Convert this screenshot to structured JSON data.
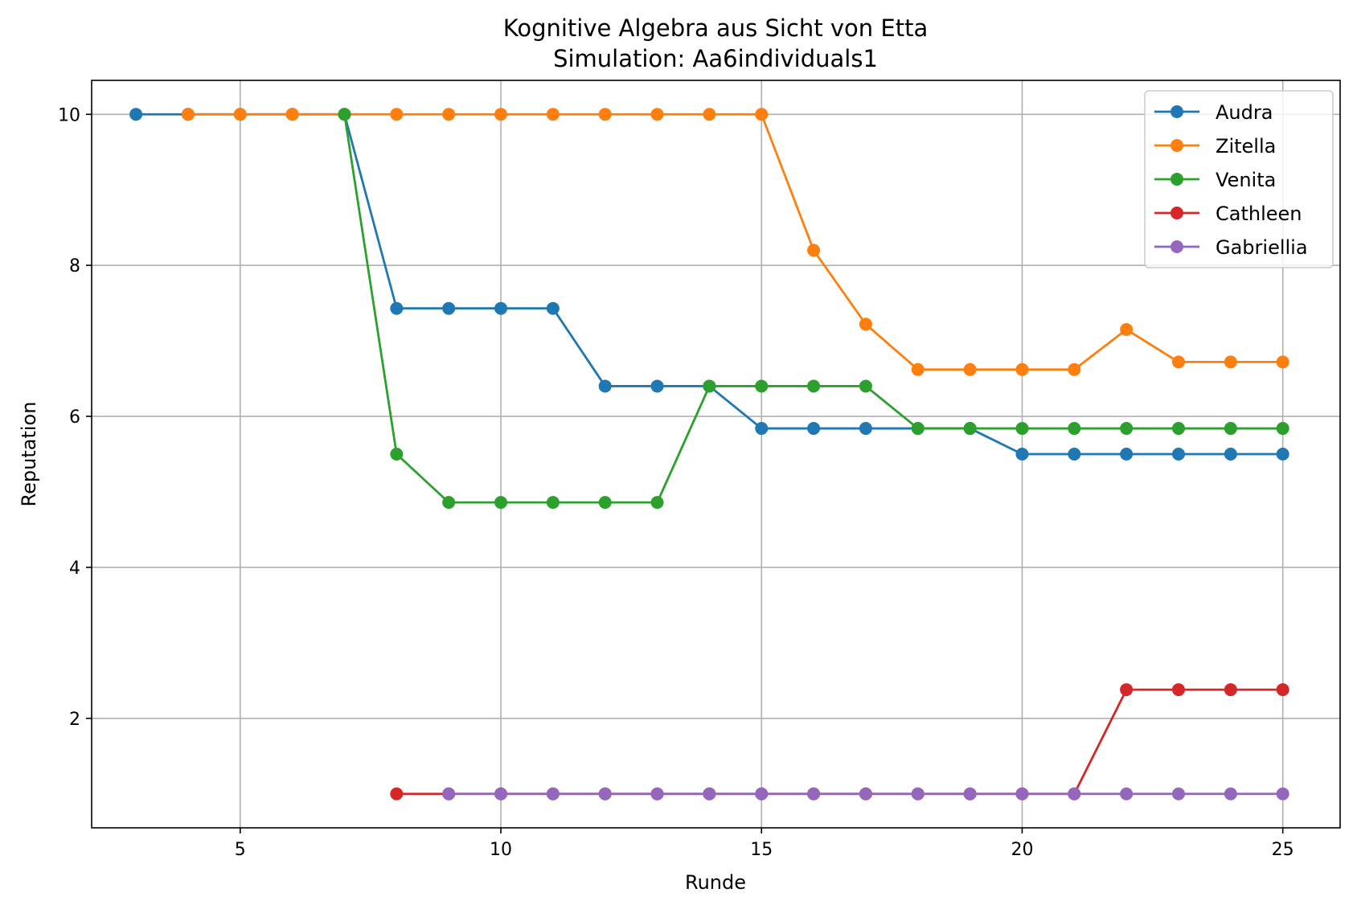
{
  "chart_data": {
    "type": "line",
    "title": "Kognitive Algebra aus Sicht von Etta",
    "subtitle": "Simulation: Aa6individuals1",
    "xlabel": "Runde",
    "ylabel": "Reputation",
    "xlim": [
      2.15,
      26.1
    ],
    "ylim": [
      0.55,
      10.45
    ],
    "xticks": [
      5,
      10,
      15,
      20,
      25
    ],
    "yticks": [
      2,
      4,
      6,
      8,
      10
    ],
    "grid": true,
    "legend_position": "top-right",
    "series": [
      {
        "name": "Audra",
        "color": "#1f77b4",
        "points": [
          [
            3,
            10
          ],
          [
            4,
            10
          ],
          [
            5,
            10
          ],
          [
            6,
            10
          ],
          [
            7,
            10
          ],
          [
            8,
            7.43
          ],
          [
            9,
            7.43
          ],
          [
            10,
            7.43
          ],
          [
            11,
            7.43
          ],
          [
            12,
            6.4
          ],
          [
            13,
            6.4
          ],
          [
            14,
            6.4
          ],
          [
            15,
            5.84
          ],
          [
            16,
            5.84
          ],
          [
            17,
            5.84
          ],
          [
            18,
            5.84
          ],
          [
            19,
            5.84
          ],
          [
            20,
            5.5
          ],
          [
            21,
            5.5
          ],
          [
            22,
            5.5
          ],
          [
            23,
            5.5
          ],
          [
            24,
            5.5
          ],
          [
            25,
            5.5
          ]
        ]
      },
      {
        "name": "Zitella",
        "color": "#ff7f0e",
        "points": [
          [
            4,
            10
          ],
          [
            5,
            10
          ],
          [
            6,
            10
          ],
          [
            7,
            10
          ],
          [
            8,
            10
          ],
          [
            9,
            10
          ],
          [
            10,
            10
          ],
          [
            11,
            10
          ],
          [
            12,
            10
          ],
          [
            13,
            10
          ],
          [
            14,
            10
          ],
          [
            15,
            10
          ],
          [
            16,
            8.2
          ],
          [
            17,
            7.22
          ],
          [
            18,
            6.62
          ],
          [
            19,
            6.62
          ],
          [
            20,
            6.62
          ],
          [
            21,
            6.62
          ],
          [
            22,
            7.15
          ],
          [
            23,
            6.72
          ],
          [
            24,
            6.72
          ],
          [
            25,
            6.72
          ]
        ]
      },
      {
        "name": "Venita",
        "color": "#2ca02c",
        "points": [
          [
            7,
            10
          ],
          [
            8,
            5.5
          ],
          [
            9,
            4.86
          ],
          [
            10,
            4.86
          ],
          [
            11,
            4.86
          ],
          [
            12,
            4.86
          ],
          [
            13,
            4.86
          ],
          [
            14,
            6.4
          ],
          [
            15,
            6.4
          ],
          [
            16,
            6.4
          ],
          [
            17,
            6.4
          ],
          [
            18,
            5.84
          ],
          [
            19,
            5.84
          ],
          [
            20,
            5.84
          ],
          [
            21,
            5.84
          ],
          [
            22,
            5.84
          ],
          [
            23,
            5.84
          ],
          [
            24,
            5.84
          ],
          [
            25,
            5.84
          ]
        ]
      },
      {
        "name": "Cathleen",
        "color": "#d62728",
        "points": [
          [
            8,
            1
          ],
          [
            9,
            1
          ],
          [
            10,
            1
          ],
          [
            11,
            1
          ],
          [
            12,
            1
          ],
          [
            13,
            1
          ],
          [
            14,
            1
          ],
          [
            15,
            1
          ],
          [
            16,
            1
          ],
          [
            17,
            1
          ],
          [
            18,
            1
          ],
          [
            19,
            1
          ],
          [
            20,
            1
          ],
          [
            21,
            1
          ],
          [
            22,
            2.38
          ],
          [
            23,
            2.38
          ],
          [
            24,
            2.38
          ],
          [
            25,
            2.38
          ]
        ]
      },
      {
        "name": "Gabriellia",
        "color": "#9467bd",
        "points": [
          [
            9,
            1
          ],
          [
            10,
            1
          ],
          [
            11,
            1
          ],
          [
            12,
            1
          ],
          [
            13,
            1
          ],
          [
            14,
            1
          ],
          [
            15,
            1
          ],
          [
            16,
            1
          ],
          [
            17,
            1
          ],
          [
            18,
            1
          ],
          [
            19,
            1
          ],
          [
            20,
            1
          ],
          [
            21,
            1
          ],
          [
            22,
            1
          ],
          [
            23,
            1
          ],
          [
            24,
            1
          ],
          [
            25,
            1
          ]
        ]
      }
    ]
  }
}
